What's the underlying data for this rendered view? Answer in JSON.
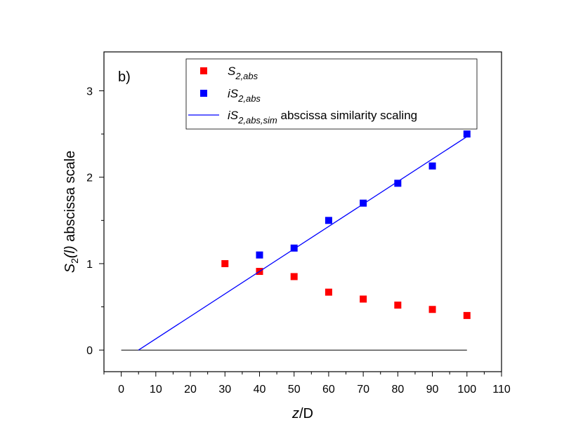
{
  "chart_data": {
    "type": "scatter",
    "panel_label": "b)",
    "xlabel": "z/D",
    "xlabel_italic": "z",
    "xlabel_rest": "/D",
    "ylabel": "S2(l) abscissa scale",
    "ylabel_parts": {
      "main": "S",
      "sub": "2",
      "paren": "(l)",
      "rest": " abscissa scale"
    },
    "xlim": [
      -5,
      110
    ],
    "ylim": [
      -0.25,
      3.45
    ],
    "xticks": [
      0,
      10,
      20,
      30,
      40,
      50,
      60,
      70,
      80,
      90,
      100,
      110
    ],
    "yticks": [
      0,
      1,
      2,
      3
    ],
    "series": [
      {
        "name": "S2,abs",
        "legend_main": "S",
        "legend_sub": "2,abs",
        "legend_suffix": "",
        "kind": "scatter",
        "marker": "square",
        "color": "#ff0000",
        "x": [
          30,
          40,
          50,
          60,
          70,
          80,
          90,
          100
        ],
        "y": [
          1.0,
          0.91,
          0.85,
          0.67,
          0.59,
          0.52,
          0.47,
          0.4
        ]
      },
      {
        "name": "iS2,abs",
        "legend_main": "iS",
        "legend_sub": "2,abs",
        "legend_suffix": "",
        "kind": "scatter",
        "marker": "square",
        "color": "#0000ff",
        "x": [
          40,
          50,
          60,
          70,
          80,
          90,
          100
        ],
        "y": [
          1.1,
          1.18,
          1.5,
          1.7,
          1.93,
          2.13,
          2.5
        ]
      },
      {
        "name": "iS2,abs,sim abscissa similarity scaling",
        "legend_main": "iS",
        "legend_sub": "2,abs,sim",
        "legend_suffix": " abscissa similarity scaling",
        "kind": "line",
        "color": "#0000ff",
        "x": [
          5,
          100
        ],
        "y": [
          0.0,
          2.47
        ]
      }
    ],
    "reference_line": {
      "color": "#000000",
      "x": [
        0,
        100
      ],
      "y": [
        0,
        0
      ]
    },
    "legend_location": "top-center"
  }
}
